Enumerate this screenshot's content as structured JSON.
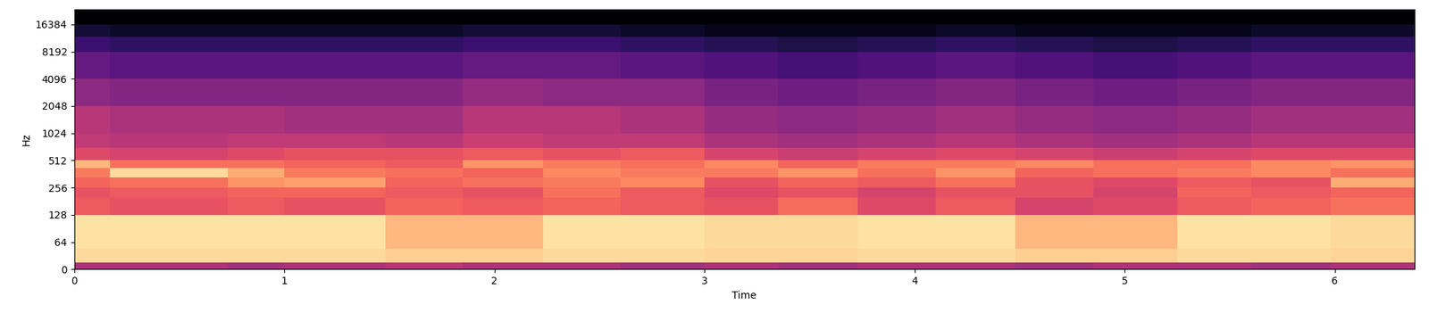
{
  "chart_data": {
    "type": "heatmap",
    "x_label": "Time",
    "y_label": "Hz",
    "xlim": [
      0,
      6.38
    ],
    "xticks": [
      0,
      1,
      2,
      3,
      4,
      5,
      6
    ],
    "ylim": [
      0,
      24000
    ],
    "yticks": [
      0,
      64,
      128,
      256,
      512,
      1024,
      2048,
      4096,
      8192,
      16384
    ],
    "log": true,
    "grid": false,
    "zlim": [
      -80,
      0
    ],
    "x_edges": [
      0,
      0.17,
      0.73,
      1.0,
      1.48,
      1.85,
      2.23,
      2.6,
      3.0,
      3.35,
      3.73,
      4.1,
      4.48,
      4.85,
      5.25,
      5.6,
      5.98,
      6.38
    ],
    "y_edges": [
      0,
      16,
      48,
      128,
      200,
      256,
      330,
      420,
      512,
      700,
      1024,
      2048,
      4096,
      8192,
      12000,
      16384,
      24000
    ],
    "cells": [
      [
        -42,
        -42,
        -44,
        -42,
        -40,
        -42,
        -42,
        -44,
        -42,
        -44,
        -42,
        -42,
        -44,
        -42,
        -42,
        -44,
        -42
      ],
      [
        -6,
        -6,
        -6,
        -6,
        -8,
        -8,
        -6,
        -6,
        -7,
        -7,
        -6,
        -6,
        -8,
        -8,
        -6,
        -6,
        -7
      ],
      [
        -5,
        -5,
        -5,
        -5,
        -12,
        -12,
        -5,
        -5,
        -6,
        -6,
        -5,
        -5,
        -12,
        -12,
        -5,
        -5,
        -6
      ],
      [
        -28,
        -30,
        -28,
        -30,
        -26,
        -28,
        -26,
        -28,
        -30,
        -25,
        -32,
        -28,
        -34,
        -32,
        -28,
        -26,
        -24
      ],
      [
        -30,
        -28,
        -26,
        -26,
        -28,
        -30,
        -24,
        -28,
        -32,
        -30,
        -34,
        -30,
        -30,
        -34,
        -26,
        -28,
        -26
      ],
      [
        -26,
        -24,
        -18,
        -16,
        -26,
        -24,
        -22,
        -20,
        -30,
        -26,
        -28,
        -24,
        -30,
        -32,
        -28,
        -30,
        -14
      ],
      [
        -22,
        -6,
        -14,
        -22,
        -24,
        -26,
        -20,
        -22,
        -22,
        -18,
        -24,
        -18,
        -26,
        -24,
        -22,
        -20,
        -24
      ],
      [
        -12,
        -24,
        -24,
        -26,
        -28,
        -18,
        -22,
        -24,
        -20,
        -26,
        -22,
        -22,
        -20,
        -24,
        -24,
        -20,
        -18
      ],
      [
        -32,
        -34,
        -32,
        -30,
        -30,
        -28,
        -30,
        -28,
        -34,
        -36,
        -34,
        -32,
        -34,
        -36,
        -34,
        -32,
        -32
      ],
      [
        -38,
        -40,
        -38,
        -38,
        -40,
        -36,
        -38,
        -38,
        -42,
        -44,
        -42,
        -40,
        -42,
        -44,
        -42,
        -40,
        -40
      ],
      [
        -40,
        -42,
        -42,
        -44,
        -44,
        -40,
        -40,
        -42,
        -46,
        -48,
        -46,
        -44,
        -46,
        -48,
        -46,
        -44,
        -44
      ],
      [
        -48,
        -50,
        -50,
        -50,
        -50,
        -46,
        -48,
        -48,
        -52,
        -54,
        -52,
        -50,
        -52,
        -54,
        -52,
        -50,
        -50
      ],
      [
        -56,
        -58,
        -58,
        -58,
        -58,
        -56,
        -56,
        -58,
        -60,
        -62,
        -60,
        -58,
        -60,
        -62,
        -60,
        -58,
        -58
      ],
      [
        -64,
        -66,
        -66,
        -66,
        -66,
        -64,
        -64,
        -66,
        -68,
        -70,
        -68,
        -66,
        -68,
        -70,
        -68,
        -66,
        -66
      ],
      [
        -72,
        -74,
        -74,
        -74,
        -74,
        -72,
        -72,
        -74,
        -76,
        -76,
        -76,
        -74,
        -76,
        -76,
        -76,
        -74,
        -74
      ],
      [
        -80,
        -80,
        -80,
        -80,
        -80,
        -80,
        -80,
        -80,
        -80,
        -80,
        -80,
        -80,
        -80,
        -80,
        -80,
        -80,
        -80
      ]
    ]
  }
}
